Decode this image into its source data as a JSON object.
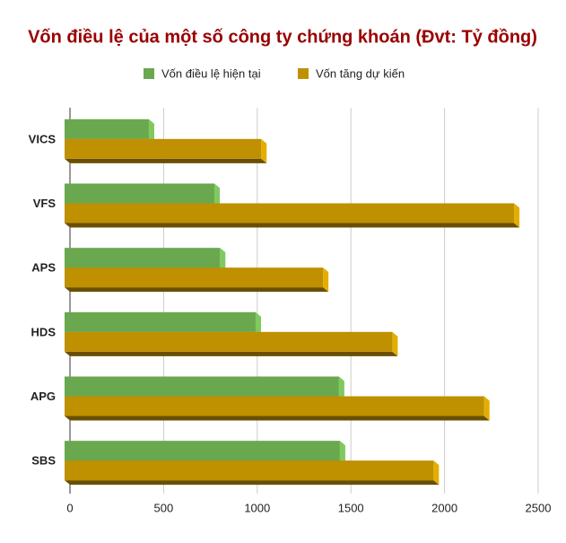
{
  "chart_data": {
    "type": "hbar3d",
    "title": "Vốn điều lệ của một số công ty chứng khoán (Đvt: Tỷ đồng)",
    "categories": [
      "VICS",
      "VFS",
      "APS",
      "HDS",
      "APG",
      "SBS"
    ],
    "series": [
      {
        "name": "Vốn điều lệ hiện tại",
        "color": "#6aa84f",
        "values": [
          450,
          800,
          830,
          1020,
          1465,
          1470
        ]
      },
      {
        "name": "Vốn tăng dự kiến",
        "color": "#bf9000",
        "values": [
          1050,
          2400,
          1380,
          1750,
          2240,
          1970
        ]
      }
    ],
    "xlim": [
      0,
      2500
    ],
    "xticks": [
      0,
      500,
      1000,
      1500,
      2000,
      2500
    ],
    "grid": true
  }
}
